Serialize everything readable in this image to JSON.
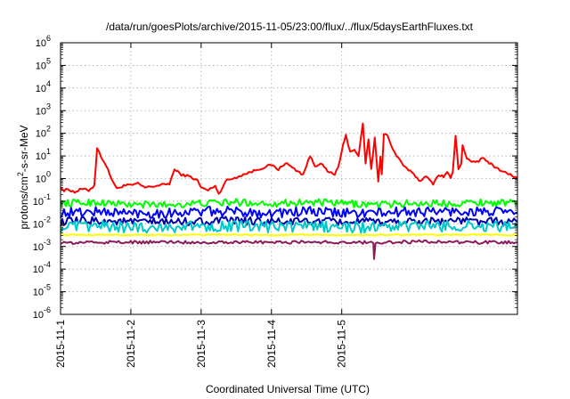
{
  "chart_data": {
    "type": "line",
    "title": "/data/run/goesPlots/archive/2015-11-05/23:00/flux/../flux/5daysEarthFluxes.txt",
    "xlabel": "Coordinated Universal Time (UTC)",
    "ylabel": "protons/cm²-s-sr-MeV",
    "ylabel_parts": {
      "pre": "protons/cm",
      "sup": "2",
      "post": "-s-sr-MeV"
    },
    "yscale": "log",
    "ylim_exp": [
      -6,
      6
    ],
    "y_ticks": [
      {
        "base": "10",
        "exp": "-6"
      },
      {
        "base": "10",
        "exp": "-5"
      },
      {
        "base": "10",
        "exp": "-4"
      },
      {
        "base": "10",
        "exp": "-3"
      },
      {
        "base": "10",
        "exp": "-2"
      },
      {
        "base": "10",
        "exp": "-1"
      },
      {
        "base": "10",
        "exp": "0"
      },
      {
        "base": "10",
        "exp": "1"
      },
      {
        "base": "10",
        "exp": "2"
      },
      {
        "base": "10",
        "exp": "3"
      },
      {
        "base": "10",
        "exp": "4"
      },
      {
        "base": "10",
        "exp": "5"
      },
      {
        "base": "10",
        "exp": "6"
      }
    ],
    "xlim_days": [
      0,
      5
    ],
    "x_ticks": [
      "2015-11-1",
      "2015-11-2",
      "2015-11-3",
      "2015-11-4",
      "2015-11-5"
    ],
    "grid": true,
    "legend": "none",
    "series": [
      {
        "color": "#ff0000",
        "noise": 0.05,
        "points": [
          [
            0.0,
            0.45
          ],
          [
            0.05,
            0.28
          ],
          [
            0.1,
            0.35
          ],
          [
            0.2,
            0.25
          ],
          [
            0.3,
            0.35
          ],
          [
            0.4,
            0.3
          ],
          [
            0.48,
            0.5
          ],
          [
            0.52,
            22
          ],
          [
            0.58,
            9
          ],
          [
            0.63,
            5
          ],
          [
            0.72,
            1.1
          ],
          [
            0.8,
            0.35
          ],
          [
            0.9,
            0.5
          ],
          [
            1.0,
            0.5
          ],
          [
            1.1,
            0.6
          ],
          [
            1.2,
            0.4
          ],
          [
            1.4,
            0.5
          ],
          [
            1.55,
            0.6
          ],
          [
            1.62,
            2.5
          ],
          [
            1.72,
            1.5
          ],
          [
            1.85,
            1.2
          ],
          [
            1.95,
            0.8
          ],
          [
            2.0,
            0.4
          ],
          [
            2.1,
            0.3
          ],
          [
            2.2,
            0.5
          ],
          [
            2.25,
            0.2
          ],
          [
            2.35,
            0.8
          ],
          [
            2.45,
            1.0
          ],
          [
            2.6,
            1.5
          ],
          [
            2.8,
            2.5
          ],
          [
            3.0,
            4
          ],
          [
            3.1,
            2.5
          ],
          [
            3.2,
            5
          ],
          [
            3.3,
            3
          ],
          [
            3.45,
            1.5
          ],
          [
            3.55,
            10
          ],
          [
            3.62,
            3.5
          ],
          [
            3.7,
            5
          ],
          [
            3.8,
            2
          ],
          [
            3.9,
            1.5
          ],
          [
            3.97,
            5
          ],
          [
            4.02,
            30
          ],
          [
            4.06,
            80
          ],
          [
            4.12,
            15
          ],
          [
            4.18,
            20
          ],
          [
            4.24,
            10
          ],
          [
            4.3,
            250
          ],
          [
            4.34,
            5
          ],
          [
            4.38,
            50
          ],
          [
            4.42,
            2.5
          ],
          [
            4.47,
            60
          ],
          [
            4.52,
            0.8
          ],
          [
            4.55,
            10
          ],
          [
            4.57,
            1.5
          ],
          [
            4.6,
            100
          ],
          [
            4.65,
            80
          ],
          [
            4.7,
            30
          ],
          [
            4.78,
            10
          ],
          [
            4.85,
            5
          ],
          [
            4.9,
            3
          ],
          [
            5.0,
            2
          ],
          [
            5.1,
            0.8
          ],
          [
            5.2,
            1.2
          ],
          [
            5.3,
            0.6
          ],
          [
            5.38,
            1.5
          ],
          [
            5.45,
            1.2
          ],
          [
            5.5,
            2
          ],
          [
            5.55,
            1.0
          ],
          [
            5.58,
            2.0
          ],
          [
            5.62,
            80
          ],
          [
            5.66,
            2.5
          ],
          [
            5.7,
            5
          ],
          [
            5.72,
            30
          ],
          [
            5.78,
            8
          ],
          [
            5.85,
            5
          ],
          [
            5.95,
            6
          ],
          [
            6.0,
            8
          ],
          [
            6.1,
            5
          ],
          [
            6.2,
            3
          ],
          [
            6.3,
            2
          ],
          [
            6.4,
            1.5
          ],
          [
            6.5,
            1.0
          ]
        ]
      },
      {
        "color": "#00ff00",
        "noise": 0.16,
        "points": [
          [
            0,
            0.08
          ],
          [
            0.5,
            0.09
          ],
          [
            1.0,
            0.07
          ],
          [
            1.5,
            0.07
          ],
          [
            2.0,
            0.08
          ],
          [
            2.5,
            0.09
          ],
          [
            3.0,
            0.08
          ],
          [
            3.5,
            0.09
          ],
          [
            4.0,
            0.08
          ],
          [
            4.5,
            0.07
          ],
          [
            5.0,
            0.08
          ],
          [
            5.5,
            0.08
          ],
          [
            6.0,
            0.09
          ],
          [
            6.5,
            0.08
          ]
        ]
      },
      {
        "color": "#0000ff",
        "noise": 0.22,
        "points": [
          [
            0,
            0.03
          ],
          [
            0.5,
            0.035
          ],
          [
            1.0,
            0.03
          ],
          [
            1.5,
            0.03
          ],
          [
            2.0,
            0.035
          ],
          [
            2.5,
            0.035
          ],
          [
            3.0,
            0.03
          ],
          [
            3.5,
            0.035
          ],
          [
            4.0,
            0.03
          ],
          [
            4.5,
            0.03
          ],
          [
            5.0,
            0.035
          ],
          [
            5.5,
            0.035
          ],
          [
            6.0,
            0.035
          ],
          [
            6.5,
            0.03
          ]
        ]
      },
      {
        "color": "#0000aa",
        "noise": 0.18,
        "points": [
          [
            0,
            0.012
          ],
          [
            0.5,
            0.014
          ],
          [
            1.0,
            0.012
          ],
          [
            1.5,
            0.012
          ],
          [
            2.0,
            0.013
          ],
          [
            2.5,
            0.014
          ],
          [
            3.0,
            0.012
          ],
          [
            3.5,
            0.013
          ],
          [
            4.0,
            0.012
          ],
          [
            4.5,
            0.012
          ],
          [
            5.0,
            0.013
          ],
          [
            5.5,
            0.014
          ],
          [
            6.0,
            0.013
          ],
          [
            6.5,
            0.012
          ]
        ]
      },
      {
        "color": "#00c8c8",
        "noise": 0.25,
        "points": [
          [
            0,
            0.007
          ],
          [
            0.5,
            0.008
          ],
          [
            1.0,
            0.007
          ],
          [
            1.5,
            0.007
          ],
          [
            2.0,
            0.008
          ],
          [
            2.5,
            0.008
          ],
          [
            3.0,
            0.007
          ],
          [
            3.5,
            0.008
          ],
          [
            4.0,
            0.007
          ],
          [
            4.5,
            0.007
          ],
          [
            5.0,
            0.008
          ],
          [
            5.5,
            0.008
          ],
          [
            6.0,
            0.008
          ],
          [
            6.5,
            0.007
          ]
        ]
      },
      {
        "color": "#ffff00",
        "noise": 0.03,
        "points": [
          [
            0,
            0.0032
          ],
          [
            0.5,
            0.0033
          ],
          [
            1.0,
            0.0032
          ],
          [
            1.5,
            0.0032
          ],
          [
            2.0,
            0.0033
          ],
          [
            2.5,
            0.0033
          ],
          [
            3.0,
            0.0032
          ],
          [
            3.5,
            0.0033
          ],
          [
            4.0,
            0.0032
          ],
          [
            4.5,
            0.0032
          ],
          [
            5.0,
            0.0033
          ],
          [
            5.5,
            0.0033
          ],
          [
            6.0,
            0.0033
          ],
          [
            6.5,
            0.0032
          ]
        ]
      },
      {
        "color": "#8b1a5a",
        "noise": 0.07,
        "points": [
          [
            0,
            0.0015
          ],
          [
            0.2,
            0.0014
          ],
          [
            0.4,
            0.0016
          ],
          [
            0.6,
            0.0015
          ],
          [
            0.8,
            0.0016
          ],
          [
            1.0,
            0.0015
          ],
          [
            1.5,
            0.0016
          ],
          [
            2.0,
            0.0015
          ],
          [
            2.5,
            0.0016
          ],
          [
            3.0,
            0.0015
          ],
          [
            3.5,
            0.0016
          ],
          [
            4.0,
            0.0015
          ],
          [
            4.4,
            0.0015
          ],
          [
            4.45,
            0.0015
          ],
          [
            4.46,
            0.00025
          ],
          [
            4.48,
            0.0015
          ],
          [
            5.0,
            0.0016
          ],
          [
            5.5,
            0.0016
          ],
          [
            6.0,
            0.0015
          ],
          [
            6.5,
            0.0015
          ]
        ]
      }
    ]
  }
}
